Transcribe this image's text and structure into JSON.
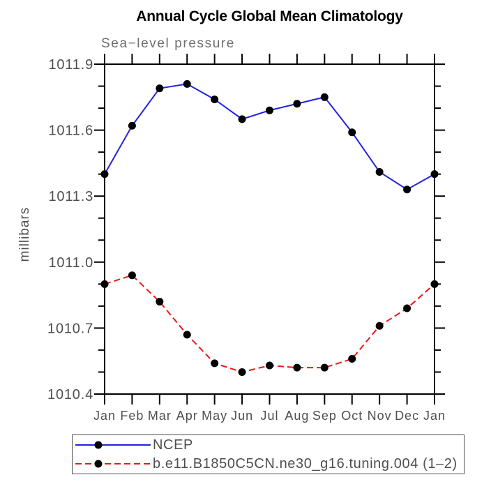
{
  "title": "Annual Cycle Global Mean Climatology",
  "subtitle": "Sea−level pressure",
  "chart_data": {
    "type": "line",
    "title": "Annual Cycle Global Mean Climatology",
    "subtitle": "Sea−level pressure",
    "xlabel": "",
    "ylabel": "millibars",
    "categories": [
      "Jan",
      "Feb",
      "Mar",
      "Apr",
      "May",
      "Jun",
      "Jul",
      "Aug",
      "Sep",
      "Oct",
      "Nov",
      "Dec",
      "Jan"
    ],
    "ylim": [
      1010.4,
      1011.9
    ],
    "ytick_step": 0.1,
    "ytick_label_step": 0.3,
    "ytick_labels": [
      "1010.4",
      "1010.7",
      "1011.0",
      "1011.3",
      "1011.6",
      "1011.9"
    ],
    "grid": false,
    "legend_position": "bottom-left",
    "series": [
      {
        "name": "NCEP",
        "line_style": "solid",
        "line_color": "#2222dd",
        "marker": "filled-circle",
        "marker_color": "#000000",
        "values": [
          1011.4,
          1011.62,
          1011.79,
          1011.81,
          1011.74,
          1011.65,
          1011.69,
          1011.72,
          1011.75,
          1011.59,
          1011.41,
          1011.33,
          1011.4
        ]
      },
      {
        "name": "b.e11.B1850C5CN.ne30_g16.tuning.004 (1‒2)",
        "line_style": "dashed",
        "line_color": "#ee1515",
        "marker": "filled-circle",
        "marker_color": "#000000",
        "values": [
          1010.9,
          1010.94,
          1010.82,
          1010.67,
          1010.54,
          1010.5,
          1010.53,
          1010.52,
          1010.52,
          1010.56,
          1010.71,
          1010.79,
          1010.9
        ]
      }
    ]
  },
  "colors": {
    "axis": "#000000",
    "tick_label": "#4f4f4f",
    "subtitle": "#6e6e6e",
    "legend_border": "#4a4a4a"
  }
}
